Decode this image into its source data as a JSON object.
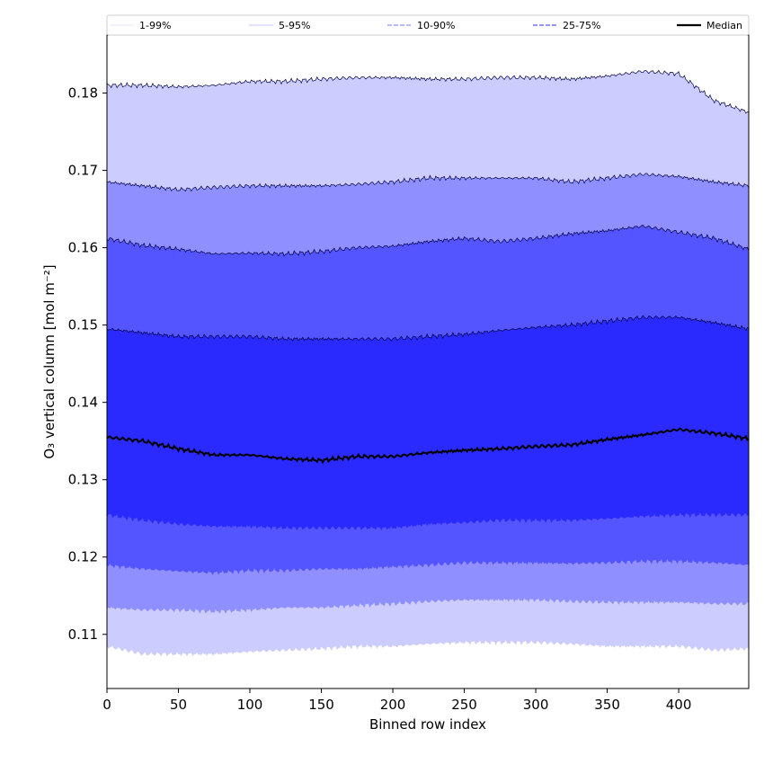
{
  "chart_data": {
    "type": "area",
    "xlabel": "Binned row index",
    "ylabel": "O₃ vertical column [mol m⁻²]",
    "xlim": [
      0,
      449
    ],
    "ylim": [
      0.103,
      0.1875
    ],
    "x_ticks": [
      0,
      50,
      100,
      150,
      200,
      250,
      300,
      350,
      400
    ],
    "y_ticks": [
      0.11,
      0.12,
      0.13,
      0.14,
      0.15,
      0.16,
      0.17,
      0.18
    ],
    "x_tick_labels": [
      "0",
      "50",
      "100",
      "150",
      "200",
      "250",
      "300",
      "350",
      "400"
    ],
    "y_tick_labels": [
      "0.11",
      "0.12",
      "0.13",
      "0.14",
      "0.15",
      "0.16",
      "0.17",
      "0.18"
    ],
    "grid": false,
    "legend_position": "top",
    "x": [
      0,
      25,
      50,
      75,
      100,
      125,
      150,
      175,
      200,
      225,
      250,
      275,
      300,
      325,
      350,
      375,
      400,
      425,
      449
    ],
    "bands": [
      {
        "name": "1-99%",
        "color": "#ccccff",
        "lower": [
          0.1085,
          0.1075,
          0.1075,
          0.1075,
          0.1078,
          0.108,
          0.1082,
          0.1085,
          0.1085,
          0.1088,
          0.109,
          0.109,
          0.109,
          0.1088,
          0.1085,
          0.1085,
          0.1085,
          0.108,
          0.1082
        ],
        "upper": [
          0.181,
          0.181,
          0.1808,
          0.181,
          0.1815,
          0.1815,
          0.1818,
          0.182,
          0.182,
          0.1818,
          0.1818,
          0.182,
          0.182,
          0.1818,
          0.1822,
          0.1828,
          0.1825,
          0.179,
          0.1775
        ]
      },
      {
        "name": "5-95%",
        "color": "#8f8fff",
        "lower": [
          0.1135,
          0.1132,
          0.1132,
          0.113,
          0.1132,
          0.1135,
          0.1135,
          0.1138,
          0.114,
          0.1143,
          0.1145,
          0.1145,
          0.1145,
          0.1143,
          0.1142,
          0.1142,
          0.1142,
          0.114,
          0.114
        ],
        "upper": [
          0.1685,
          0.168,
          0.1675,
          0.1678,
          0.168,
          0.168,
          0.168,
          0.1682,
          0.1685,
          0.169,
          0.169,
          0.169,
          0.169,
          0.1685,
          0.169,
          0.1695,
          0.1692,
          0.1685,
          0.168
        ]
      },
      {
        "name": "10-90%",
        "color": "#5555ff",
        "lower": [
          0.119,
          0.1185,
          0.1182,
          0.118,
          0.1183,
          0.1183,
          0.1185,
          0.1185,
          0.1188,
          0.119,
          0.1193,
          0.1193,
          0.1193,
          0.1192,
          0.1193,
          0.1195,
          0.1195,
          0.1193,
          0.119
        ],
        "upper": [
          0.1612,
          0.1603,
          0.1598,
          0.1592,
          0.1593,
          0.1592,
          0.1595,
          0.16,
          0.1602,
          0.1608,
          0.1612,
          0.1608,
          0.1612,
          0.1618,
          0.1622,
          0.1628,
          0.162,
          0.1612,
          0.1598
        ]
      },
      {
        "name": "25-75%",
        "color": "#2a2aff",
        "lower": [
          0.1255,
          0.1248,
          0.1243,
          0.124,
          0.124,
          0.1238,
          0.1238,
          0.1238,
          0.1238,
          0.1243,
          0.1245,
          0.1248,
          0.1248,
          0.1248,
          0.125,
          0.1253,
          0.1255,
          0.1255,
          0.1255
        ],
        "upper": [
          0.1495,
          0.149,
          0.1485,
          0.1485,
          0.1485,
          0.1482,
          0.1482,
          0.1482,
          0.1482,
          0.1485,
          0.1488,
          0.1493,
          0.1497,
          0.15,
          0.1505,
          0.151,
          0.151,
          0.1503,
          0.1495
        ]
      }
    ],
    "median": {
      "name": "Median",
      "color": "#000000",
      "values": [
        0.1355,
        0.135,
        0.134,
        0.1332,
        0.1332,
        0.1327,
        0.1325,
        0.133,
        0.133,
        0.1335,
        0.1338,
        0.134,
        0.1343,
        0.1345,
        0.1352,
        0.1358,
        0.1365,
        0.136,
        0.1353
      ]
    },
    "legend": [
      {
        "label": "1-99%",
        "color": "#ccccff",
        "dash": "none",
        "width": 0.6
      },
      {
        "label": "5-95%",
        "color": "#8f8fff",
        "dash": "none",
        "width": 0.6
      },
      {
        "label": "10-90%",
        "color": "#8f8fff",
        "dash": "5,2",
        "width": 1.3
      },
      {
        "label": "25-75%",
        "color": "#5555ff",
        "dash": "5,2",
        "width": 1.3
      },
      {
        "label": "Median",
        "color": "#000000",
        "dash": "none",
        "width": 2.2
      }
    ]
  }
}
